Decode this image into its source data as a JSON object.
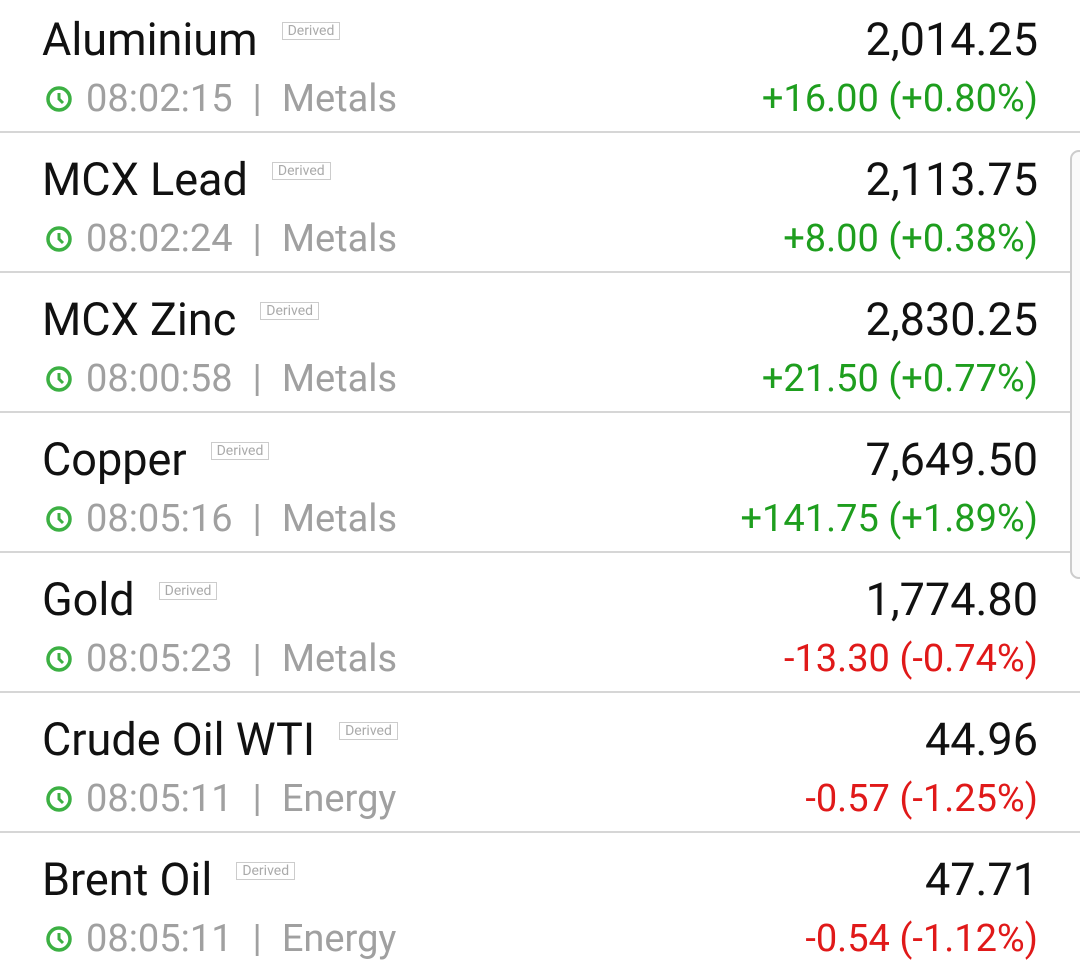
{
  "rows": [
    {
      "name": "Aluminium",
      "badge": "Derived",
      "time": "08:02:15",
      "separator": "|",
      "category": "Metals",
      "price": "2,014.25",
      "change": "+16.00 (+0.80%)",
      "color": "#1e9e1e"
    },
    {
      "name": "MCX Lead",
      "badge": "Derived",
      "time": "08:02:24",
      "separator": "|",
      "category": "Metals",
      "price": "2,113.75",
      "change": "+8.00 (+0.38%)",
      "color": "#1e9e1e"
    },
    {
      "name": "MCX Zinc",
      "badge": "Derived",
      "time": "08:00:58",
      "separator": "|",
      "category": "Metals",
      "price": "2,830.25",
      "change": "+21.50 (+0.77%)",
      "color": "#1e9e1e"
    },
    {
      "name": "Copper",
      "badge": "Derived",
      "time": "08:05:16",
      "separator": "|",
      "category": "Metals",
      "price": "7,649.50",
      "change": "+141.75 (+1.89%)",
      "color": "#1e9e1e"
    },
    {
      "name": "Gold",
      "badge": "Derived",
      "time": "08:05:23",
      "separator": "|",
      "category": "Metals",
      "price": "1,774.80",
      "change": "-13.30 (-0.74%)",
      "color": "#e01919"
    },
    {
      "name": "Crude Oil WTI",
      "badge": "Derived",
      "time": "08:05:11",
      "separator": "|",
      "category": "Energy",
      "price": "44.96",
      "change": "-0.57 (-1.25%)",
      "color": "#e01919"
    },
    {
      "name": "Brent Oil",
      "badge": "Derived",
      "time": "08:05:11",
      "separator": "|",
      "category": "Energy",
      "price": "47.71",
      "change": "-0.54 (-1.12%)",
      "color": "#e01919"
    }
  ]
}
